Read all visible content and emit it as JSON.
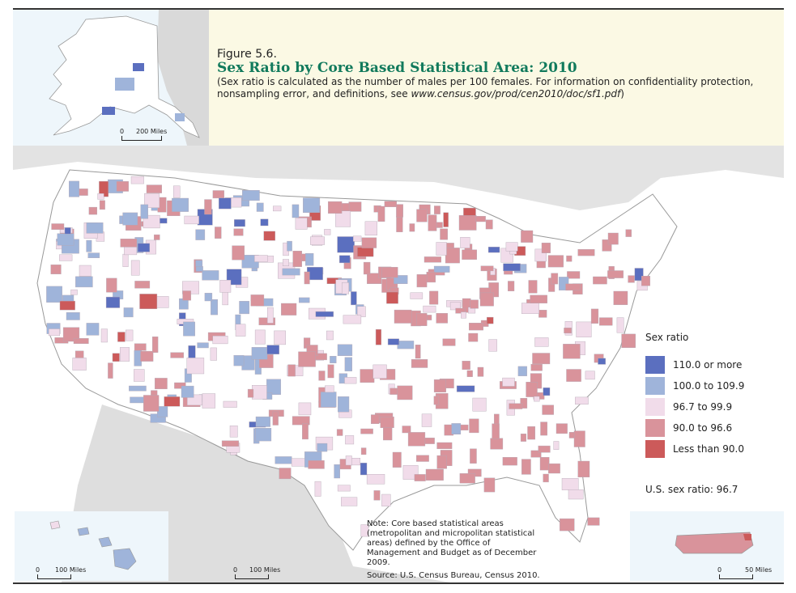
{
  "figure": {
    "number": "Figure 5.6.",
    "title": "Sex Ratio by Core Based Statistical Area: 2010",
    "subtitle_text": "(Sex ratio is calculated as the number of males per 100 females. For information on confidentiality protection, nonsampling error, and definitions, see ",
    "subtitle_url": "www.census.gov/prod/cen2010/doc/sf1.pdf",
    "subtitle_end": ")"
  },
  "legend": {
    "title": "Sex ratio",
    "items": [
      {
        "label": "110.0 or more",
        "color": "#5b6fbf"
      },
      {
        "label": "100.0 to 109.9",
        "color": "#9fb4da"
      },
      {
        "label": "96.7 to 99.9",
        "color": "#f1dcea"
      },
      {
        "label": "90.0 to 96.6",
        "color": "#d9939b"
      },
      {
        "label": "Less than 90.0",
        "color": "#cc5a5a"
      }
    ]
  },
  "us_ratio": "U.S. sex ratio: 96.7",
  "note": "Note: Core based statistical areas (metropolitan and micropolitan statistical areas) defined by the Office of Management and Budget as of December 2009.",
  "source": "Source: U.S. Census Bureau, Census 2010.",
  "scales": {
    "alaska": {
      "zero": "0",
      "label": "200 Miles"
    },
    "hawaii": {
      "zero": "0",
      "label": "100 Miles"
    },
    "main": {
      "zero": "0",
      "label": "100 Miles"
    },
    "puerto_rico": {
      "zero": "0",
      "label": "50 Miles"
    }
  },
  "colors": {
    "land": "#ffffff",
    "land_neighbor": "#d9d9d9",
    "water": "#eef6fb",
    "state_border": "#999999"
  }
}
